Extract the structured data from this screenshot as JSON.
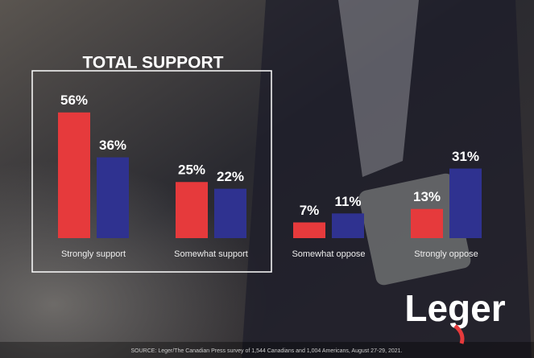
{
  "chart_data": {
    "type": "bar",
    "title": "TOTAL SUPPORT",
    "categories": [
      "Strongly support",
      "Somewhat support",
      "Somewhat oppose",
      "Strongly oppose"
    ],
    "series": [
      {
        "color": "#e63a3c",
        "values": [
          56,
          25,
          7,
          13
        ],
        "value_labels": [
          "56%",
          "25%",
          "7%",
          "13%"
        ]
      },
      {
        "color": "#2f3290",
        "values": [
          36,
          22,
          11,
          31
        ],
        "value_labels": [
          "36%",
          "22%",
          "11%",
          "31%"
        ]
      }
    ]
  },
  "logo": "Leger",
  "source": "SOURCE: Leger/The Canadian Press survey of 1,544 Canadians and 1,004 Americans, August 27-29, 2021."
}
